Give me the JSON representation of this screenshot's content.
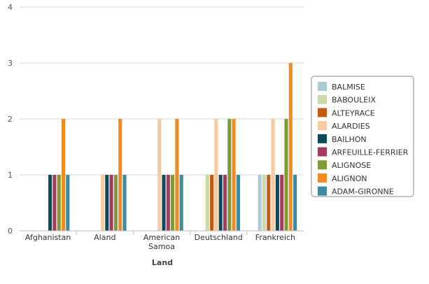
{
  "chart_data": {
    "type": "bar",
    "xlabel": "Land",
    "ylabel": "",
    "ylim": [
      0,
      4
    ],
    "yticks": [
      0,
      1,
      2,
      3,
      4
    ],
    "grid": true,
    "legend_position": "right",
    "categories": [
      [
        "Afghanistan"
      ],
      [
        "Aland"
      ],
      [
        "American",
        "Samoa"
      ],
      [
        "Deutschland"
      ],
      [
        "Frankreich"
      ]
    ],
    "series": [
      {
        "name": "BALMISE",
        "color": "#a9cbd3",
        "values": [
          0,
          0,
          0,
          0,
          1
        ]
      },
      {
        "name": "BABOULEIX",
        "color": "#cdd8a9",
        "values": [
          0,
          0,
          0,
          1,
          1
        ]
      },
      {
        "name": "ALTEYRACE",
        "color": "#c75a12",
        "values": [
          0,
          0,
          0,
          1,
          1
        ]
      },
      {
        "name": "ALARDIES",
        "color": "#f9c9a0",
        "values": [
          0,
          1,
          2,
          2,
          2
        ]
      },
      {
        "name": "BAILHON",
        "color": "#0c4a5a",
        "values": [
          1,
          1,
          1,
          1,
          1
        ]
      },
      {
        "name": "ARFEUILLE-FERRIER",
        "color": "#a63a5e",
        "values": [
          1,
          1,
          1,
          1,
          1
        ]
      },
      {
        "name": "ALIGNOSE",
        "color": "#7c9c3a",
        "values": [
          1,
          1,
          1,
          2,
          2
        ]
      },
      {
        "name": "ALIGNON",
        "color": "#f28a24",
        "values": [
          2,
          2,
          2,
          2,
          3
        ]
      },
      {
        "name": "ADAM-GIRONNE",
        "color": "#3e8aa3",
        "values": [
          1,
          1,
          1,
          1,
          1
        ]
      }
    ]
  }
}
